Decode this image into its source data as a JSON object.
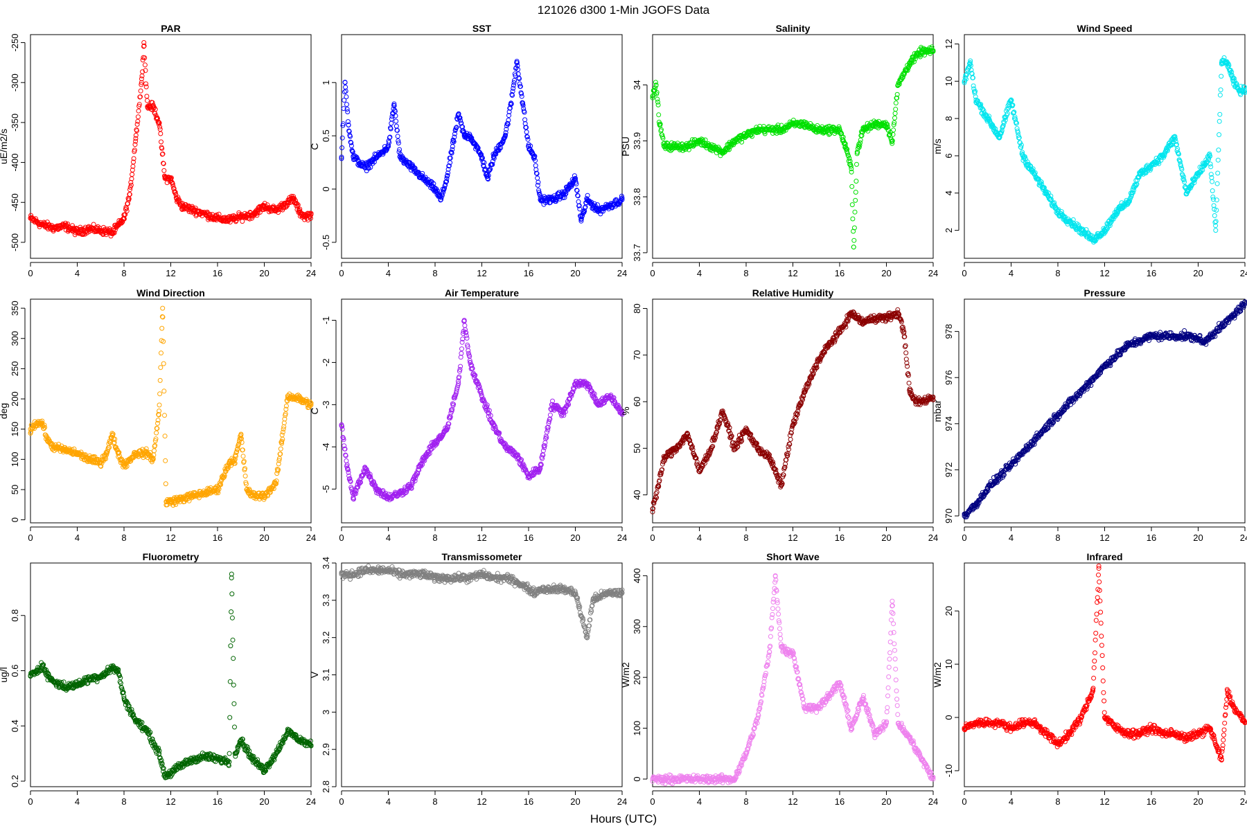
{
  "figure": {
    "title": "121026   d300   1-Min  JGOFS Data",
    "xlabel": "Hours (UTC)"
  },
  "chart_data": [
    {
      "type": "scatter",
      "title": "PAR",
      "ylabel": "uE/m2/s",
      "color": "#ff0000",
      "xlim": [
        0,
        24
      ],
      "ylim": [
        -520,
        -240
      ],
      "xticks": [
        0,
        4,
        8,
        12,
        16,
        20,
        24
      ],
      "yticks": [
        -500,
        -450,
        -400,
        -350,
        -300,
        -250
      ],
      "x": [
        0,
        1,
        2,
        3,
        4,
        5,
        6,
        7,
        8,
        8.5,
        9,
        9.5,
        9.7,
        10,
        10.5,
        11,
        11.5,
        12,
        12.5,
        13,
        14,
        15,
        16,
        17,
        18,
        19,
        20,
        21,
        22,
        22.5,
        23,
        23.5,
        24
      ],
      "y": [
        -470,
        -478,
        -482,
        -480,
        -487,
        -483,
        -485,
        -488,
        -470,
        -440,
        -370,
        -300,
        -250,
        -330,
        -330,
        -350,
        -420,
        -420,
        -445,
        -455,
        -460,
        -465,
        -470,
        -472,
        -468,
        -465,
        -455,
        -460,
        -450,
        -445,
        -462,
        -468,
        -465
      ]
    },
    {
      "type": "scatter",
      "title": "SST",
      "ylabel": "C",
      "color": "#0000ff",
      "xlim": [
        0,
        24
      ],
      "ylim": [
        -0.65,
        1.45
      ],
      "xticks": [
        0,
        4,
        8,
        12,
        16,
        20,
        24
      ],
      "yticks": [
        -0.5,
        0.0,
        0.5,
        1.0
      ],
      "x": [
        0,
        0.3,
        0.6,
        1,
        2,
        3,
        4,
        4.5,
        5,
        6,
        7,
        8,
        8.5,
        9,
        9.5,
        10,
        10.5,
        11,
        12,
        12.5,
        13,
        14,
        14.5,
        15,
        15.5,
        16,
        16.5,
        17,
        18,
        19,
        20,
        20.5,
        21,
        22,
        23,
        24
      ],
      "y": [
        0.3,
        1.0,
        0.6,
        0.3,
        0.2,
        0.3,
        0.4,
        0.8,
        0.3,
        0.2,
        0.1,
        0.0,
        -0.1,
        0.1,
        0.4,
        0.7,
        0.5,
        0.5,
        0.3,
        0.1,
        0.3,
        0.5,
        0.8,
        1.2,
        0.8,
        0.4,
        0.3,
        -0.1,
        -0.1,
        -0.05,
        0.1,
        -0.3,
        -0.1,
        -0.2,
        -0.15,
        -0.1
      ]
    },
    {
      "type": "scatter",
      "title": "Salinity",
      "ylabel": "PSU",
      "color": "#00e000",
      "xlim": [
        0,
        24
      ],
      "ylim": [
        33.69,
        34.09
      ],
      "xticks": [
        0,
        4,
        8,
        12,
        16,
        20,
        24
      ],
      "yticks": [
        33.7,
        33.8,
        33.9,
        34.0
      ],
      "x": [
        0,
        0.3,
        0.6,
        1,
        2,
        3,
        4,
        5,
        6,
        7,
        8,
        9,
        10,
        11,
        12,
        13,
        14,
        15,
        16,
        16.5,
        17,
        17.2,
        17.5,
        18,
        19,
        20,
        20.5,
        21,
        22,
        23,
        24
      ],
      "y": [
        33.98,
        34.0,
        33.93,
        33.89,
        33.89,
        33.89,
        33.9,
        33.89,
        33.88,
        33.9,
        33.91,
        33.92,
        33.92,
        33.92,
        33.93,
        33.93,
        33.92,
        33.92,
        33.92,
        33.89,
        33.85,
        33.71,
        33.88,
        33.92,
        33.93,
        33.93,
        33.9,
        34.0,
        34.04,
        34.06,
        34.06
      ]
    },
    {
      "type": "scatter",
      "title": "Wind Speed",
      "ylabel": "m/s",
      "color": "#00e5ee",
      "xlim": [
        0,
        24
      ],
      "ylim": [
        0.5,
        12.5
      ],
      "xticks": [
        0,
        4,
        8,
        12,
        16,
        20,
        24
      ],
      "yticks": [
        2,
        4,
        6,
        8,
        10,
        12
      ],
      "x": [
        0,
        0.5,
        1,
        2,
        3,
        4,
        5,
        6,
        7,
        8,
        9,
        10,
        11,
        12,
        13,
        14,
        15,
        16,
        17,
        18,
        19,
        20,
        21,
        21.5,
        22,
        22.5,
        23,
        23.5,
        24
      ],
      "y": [
        10,
        11,
        9,
        8,
        7,
        9,
        6,
        5,
        4,
        3,
        2.5,
        2,
        1.5,
        2,
        3,
        3.5,
        5,
        5.5,
        6,
        7,
        4,
        5,
        6,
        2,
        11,
        11,
        10,
        9.5,
        9.5
      ]
    },
    {
      "type": "scatter",
      "title": "Wind Direction",
      "ylabel": "deg",
      "color": "#ffa500",
      "xlim": [
        0,
        24
      ],
      "ylim": [
        -5,
        365
      ],
      "xticks": [
        0,
        4,
        8,
        12,
        16,
        20,
        24
      ],
      "yticks": [
        0,
        50,
        100,
        150,
        200,
        250,
        300,
        350
      ],
      "x": [
        0,
        0.5,
        1,
        1.5,
        2,
        3,
        4,
        5,
        6,
        6.5,
        7,
        7.5,
        8,
        9,
        10,
        10.5,
        11,
        11.3,
        11.6,
        12,
        13,
        14,
        15,
        16,
        17,
        17.5,
        18,
        18.5,
        19,
        20,
        21,
        21.5,
        22,
        23,
        24
      ],
      "y": [
        150,
        160,
        160,
        130,
        120,
        115,
        110,
        100,
        95,
        110,
        140,
        110,
        90,
        110,
        110,
        100,
        180,
        350,
        30,
        30,
        35,
        40,
        45,
        50,
        95,
        100,
        140,
        50,
        40,
        40,
        60,
        130,
        205,
        200,
        190
      ]
    },
    {
      "type": "scatter",
      "title": "Air Temperature",
      "ylabel": "C",
      "color": "#a020f0",
      "xlim": [
        0,
        24
      ],
      "ylim": [
        -5.8,
        -0.5
      ],
      "xticks": [
        0,
        4,
        8,
        12,
        16,
        20,
        24
      ],
      "yticks": [
        -5,
        -4,
        -3,
        -2,
        -1
      ],
      "x": [
        0,
        0.5,
        1,
        2,
        3,
        4,
        5,
        6,
        7,
        8,
        9,
        10,
        10.5,
        11,
        12,
        13,
        14,
        15,
        16,
        17,
        18,
        19,
        20,
        21,
        22,
        23,
        24
      ],
      "y": [
        -3.5,
        -4.5,
        -5.2,
        -4.5,
        -5.0,
        -5.2,
        -5.1,
        -4.9,
        -4.3,
        -3.9,
        -3.6,
        -2.5,
        -1.0,
        -2.0,
        -2.8,
        -3.5,
        -4.0,
        -4.2,
        -4.7,
        -4.5,
        -3.0,
        -3.2,
        -2.5,
        -2.5,
        -3.0,
        -2.8,
        -3.2
      ]
    },
    {
      "type": "scatter",
      "title": "Relative Humidity",
      "ylabel": "%",
      "color": "#8b0000",
      "xlim": [
        0,
        24
      ],
      "ylim": [
        34,
        82
      ],
      "xticks": [
        0,
        4,
        8,
        12,
        16,
        20,
        24
      ],
      "yticks": [
        40,
        50,
        60,
        70,
        80
      ],
      "x": [
        0,
        0.5,
        1,
        2,
        3,
        4,
        5,
        6,
        7,
        8,
        9,
        10,
        11,
        12,
        13,
        14,
        15,
        16,
        17,
        18,
        19,
        20,
        21,
        21.5,
        22,
        22.5,
        23,
        24
      ],
      "y": [
        37,
        42,
        48,
        50,
        53,
        45,
        50,
        58,
        50,
        54,
        50,
        48,
        42,
        55,
        62,
        68,
        72,
        75,
        79,
        77,
        78,
        78,
        79,
        75,
        62,
        60,
        60,
        61
      ]
    },
    {
      "type": "scatter",
      "title": "Pressure",
      "ylabel": "mbar",
      "color": "#000080",
      "xlim": [
        0,
        24
      ],
      "ylim": [
        969.7,
        979.4
      ],
      "xticks": [
        0,
        4,
        8,
        12,
        16,
        20,
        24
      ],
      "yticks": [
        970,
        972,
        974,
        976,
        978
      ],
      "x": [
        0,
        1,
        2,
        4,
        6,
        8,
        10,
        12,
        14,
        16,
        18,
        19,
        20,
        20.5,
        21,
        22,
        23,
        24
      ],
      "y": [
        970.0,
        970.5,
        971.2,
        972.2,
        973.3,
        974.4,
        975.4,
        976.5,
        977.4,
        977.8,
        977.8,
        977.8,
        977.7,
        977.5,
        977.8,
        978.2,
        978.7,
        979.2
      ]
    },
    {
      "type": "scatter",
      "title": "Fluorometry",
      "ylabel": "ug/l",
      "color": "#006400",
      "xlim": [
        0,
        24
      ],
      "ylim": [
        0.18,
        0.99
      ],
      "xticks": [
        0,
        4,
        8,
        12,
        16,
        20,
        24
      ],
      "yticks": [
        0.2,
        0.4,
        0.6,
        0.8
      ],
      "x": [
        0,
        0.5,
        1,
        1.5,
        2,
        3,
        4,
        5,
        6,
        7,
        7.5,
        8,
        9,
        10,
        11,
        11.5,
        12,
        13,
        14,
        15,
        16,
        17,
        17.2,
        17.5,
        18,
        19,
        20,
        21,
        22,
        23,
        24
      ],
      "y": [
        0.58,
        0.6,
        0.62,
        0.58,
        0.56,
        0.54,
        0.55,
        0.57,
        0.58,
        0.61,
        0.6,
        0.5,
        0.42,
        0.38,
        0.3,
        0.22,
        0.23,
        0.26,
        0.28,
        0.29,
        0.28,
        0.27,
        0.95,
        0.3,
        0.35,
        0.28,
        0.24,
        0.3,
        0.38,
        0.35,
        0.33
      ]
    },
    {
      "type": "scatter",
      "title": "Transmissometer",
      "ylabel": "V",
      "color": "#808080",
      "xlim": [
        0,
        24
      ],
      "ylim": [
        2.8,
        3.4
      ],
      "xticks": [
        0,
        4,
        8,
        12,
        16,
        20,
        24
      ],
      "yticks": [
        2.8,
        2.9,
        3.0,
        3.1,
        3.2,
        3.3,
        3.4
      ],
      "x": [
        0,
        1,
        2,
        3,
        4,
        5,
        6,
        7,
        8,
        9,
        10,
        11,
        12,
        13,
        14,
        15,
        16,
        16.5,
        17,
        18,
        19,
        20,
        21,
        21.5,
        22,
        23,
        24
      ],
      "y": [
        3.37,
        3.37,
        3.38,
        3.38,
        3.38,
        3.37,
        3.37,
        3.37,
        3.36,
        3.36,
        3.36,
        3.36,
        3.37,
        3.36,
        3.36,
        3.35,
        3.33,
        3.32,
        3.33,
        3.33,
        3.33,
        3.32,
        3.2,
        3.3,
        3.31,
        3.32,
        3.32
      ]
    },
    {
      "type": "scatter",
      "title": "Short Wave",
      "ylabel": "W/m2",
      "color": "#ee82ee",
      "xlim": [
        0,
        24
      ],
      "ylim": [
        -15,
        425
      ],
      "xticks": [
        0,
        4,
        8,
        12,
        16,
        20,
        24
      ],
      "yticks": [
        0,
        100,
        200,
        300,
        400
      ],
      "x": [
        0,
        2,
        4,
        6,
        7,
        8,
        9,
        10,
        10.5,
        11,
        11.5,
        12,
        13,
        14,
        15,
        16,
        17,
        18,
        19,
        20,
        20.5,
        21,
        22,
        23,
        24
      ],
      "y": [
        0,
        0,
        0,
        0,
        0,
        50,
        120,
        250,
        400,
        260,
        250,
        250,
        140,
        140,
        160,
        190,
        100,
        160,
        90,
        110,
        350,
        110,
        80,
        40,
        0
      ]
    },
    {
      "type": "scatter",
      "title": "Infrared",
      "ylabel": "W/m2",
      "color": "#ff0000",
      "xlim": [
        0,
        24
      ],
      "ylim": [
        -13,
        29
      ],
      "xticks": [
        0,
        4,
        8,
        12,
        16,
        20,
        24
      ],
      "yticks": [
        -10,
        0,
        10,
        20
      ],
      "x": [
        0,
        1,
        2,
        3,
        4,
        5,
        6,
        7,
        8,
        9,
        10,
        11,
        11.5,
        12,
        13,
        14,
        15,
        16,
        17,
        18,
        19,
        20,
        21,
        22,
        22.5,
        23,
        24
      ],
      "y": [
        -2,
        -1,
        -1,
        -1,
        -2,
        -1,
        -1,
        -3,
        -5,
        -3,
        0,
        5,
        28,
        0,
        -2,
        -3,
        -3,
        -2,
        -3,
        -3,
        -4,
        -3,
        -2,
        -8,
        5,
        2,
        -1
      ]
    }
  ]
}
